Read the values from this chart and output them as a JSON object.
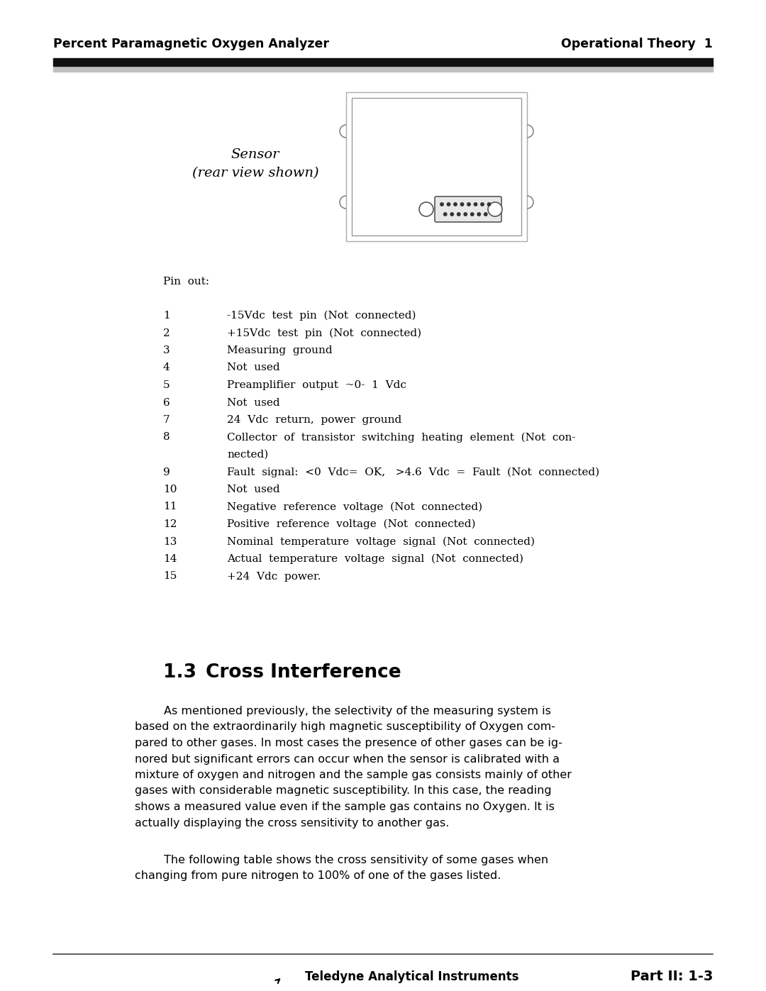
{
  "header_left": "Percent Paramagnetic Oxygen Analyzer",
  "header_right": "Operational Theory  1",
  "footer_center": "Teledyne Analytical Instruments",
  "footer_right": "Part II: 1-3",
  "sensor_label_line1": "Sensor",
  "sensor_label_line2": "(rear view shown)",
  "pin_out_title": "Pin  out:",
  "pin_items": [
    [
      "1",
      "-15Vdc  test  pin  (Not  connected)"
    ],
    [
      "2",
      "+15Vdc  test  pin  (Not  connected)"
    ],
    [
      "3",
      "Measuring  ground"
    ],
    [
      "4",
      "Not  used"
    ],
    [
      "5",
      "Preamplifier  output  ~0-  1  Vdc"
    ],
    [
      "6",
      "Not  used"
    ],
    [
      "7",
      "24  Vdc  return,  power  ground"
    ],
    [
      "8",
      "Collector  of  transistor  switching  heating  element  (Not  con-",
      "nected)"
    ],
    [
      "9",
      "Fault  signal:  <0  Vdc=  OK,   >4.6  Vdc  =  Fault  (Not  connected)"
    ],
    [
      "10",
      "Not  used"
    ],
    [
      "11",
      "Negative  reference  voltage  (Not  connected)"
    ],
    [
      "12",
      "Positive  reference  voltage  (Not  connected)"
    ],
    [
      "13",
      "Nominal  temperature  voltage  signal  (Not  connected)"
    ],
    [
      "14",
      "Actual  temperature  voltage  signal  (Not  connected)"
    ],
    [
      "15",
      "+24  Vdc  power."
    ]
  ],
  "section_number": "1.3",
  "section_name": "Cross Interference",
  "body_para1_lines": [
    "        As mentioned previously, the selectivity of the measuring system is",
    "based on the extraordinarily high magnetic susceptibility of Oxygen com-",
    "pared to other gases. In most cases the presence of other gases can be ig-",
    "nored but significant errors can occur when the sensor is calibrated with a",
    "mixture of oxygen and nitrogen and the sample gas consists mainly of other",
    "gases with considerable magnetic susceptibility. In this case, the reading",
    "shows a measured value even if the sample gas contains no Oxygen. It is",
    "actually displaying the cross sensitivity to another gas."
  ],
  "body_para2_lines": [
    "        The following table shows the cross sensitivity of some gases when",
    "changing from pure nitrogen to 100% of one of the gases listed."
  ],
  "bg_color": "#ffffff",
  "text_color": "#000000"
}
